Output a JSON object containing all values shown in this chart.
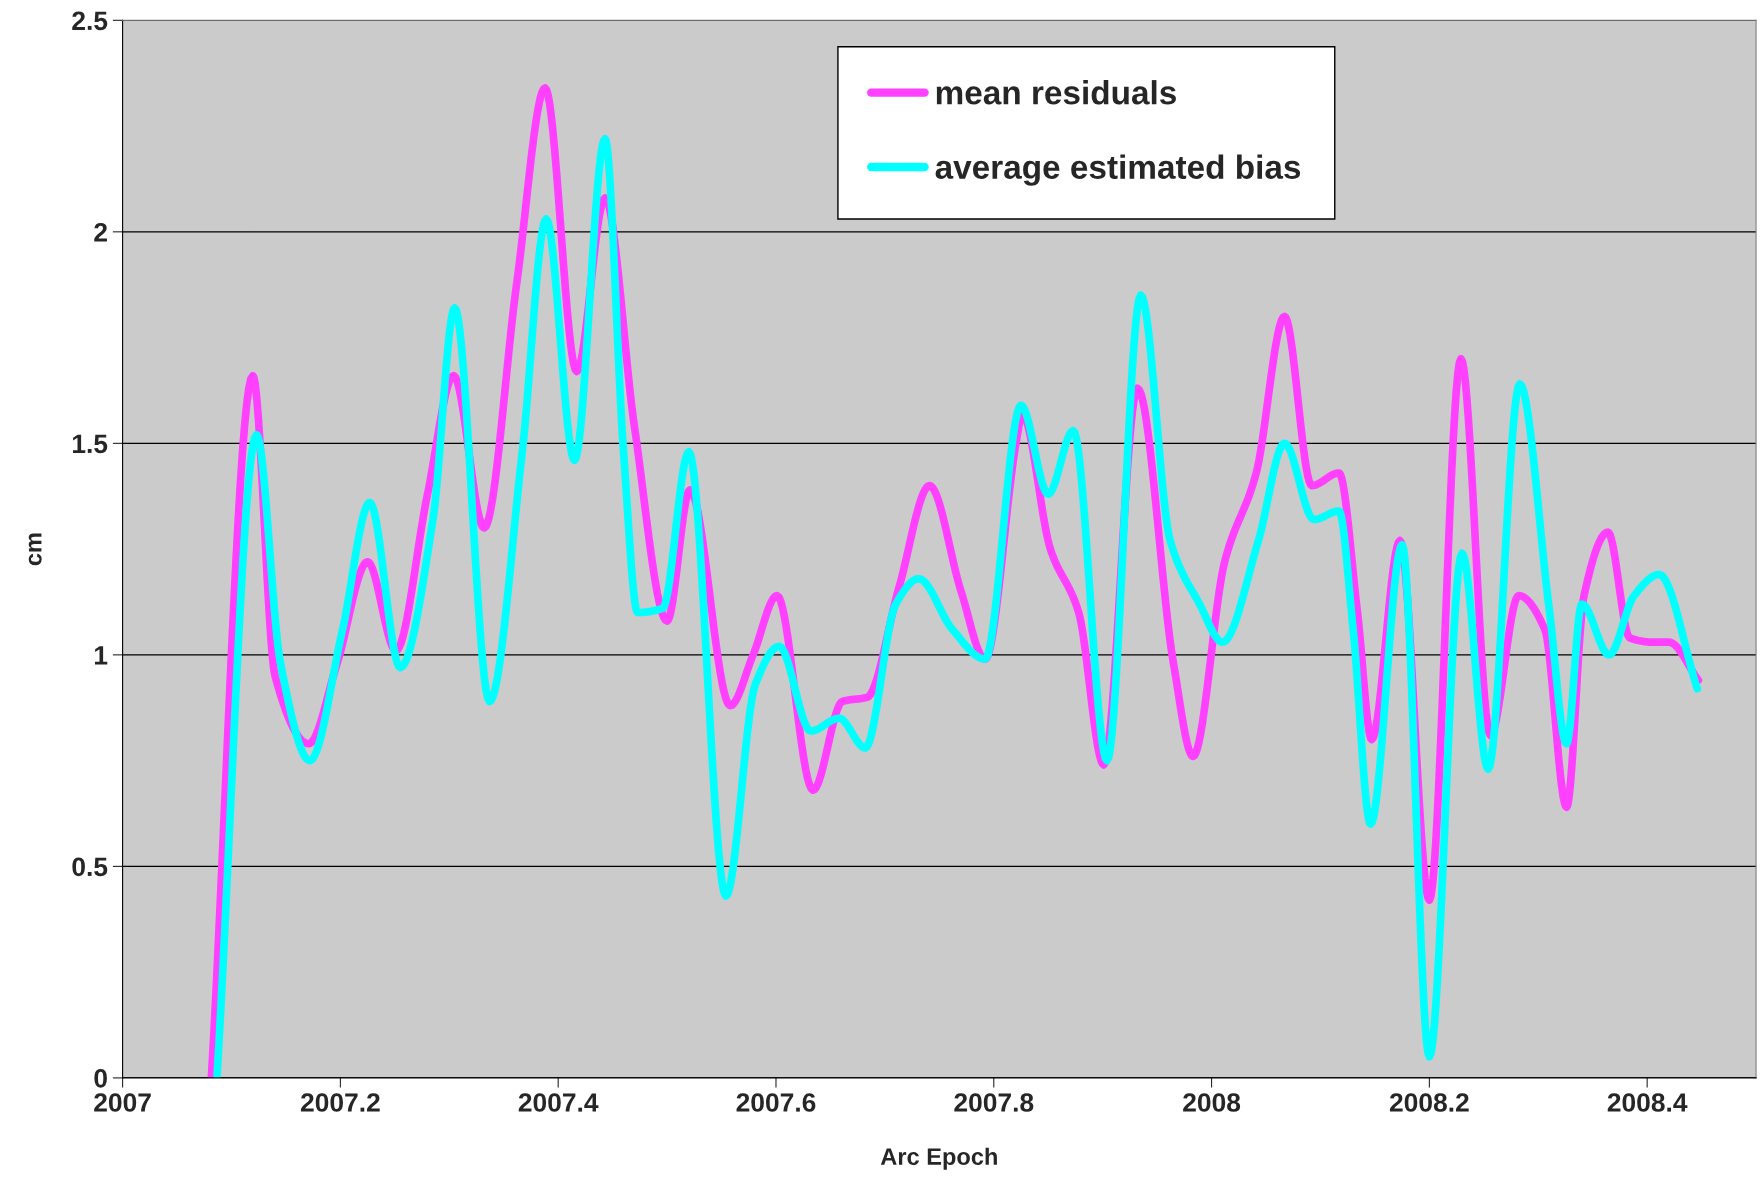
{
  "chart_data": {
    "type": "line",
    "xlabel": "Arc Epoch",
    "ylabel": "cm",
    "xlim": [
      2007,
      2008.5
    ],
    "ylim": [
      0,
      2.5
    ],
    "xticks": [
      2007,
      2007.2,
      2007.4,
      2007.6,
      2007.8,
      2008,
      2008.2,
      2008.4
    ],
    "yticks": [
      0,
      0.5,
      1,
      1.5,
      2,
      2.5
    ],
    "grid": "y",
    "legend": "top",
    "marker": "none",
    "line_style": "solid",
    "series": [
      {
        "name": "mean residuals",
        "color": "#ff40ff",
        "x": [
          2007.0815,
          2007.1196,
          2007.14,
          2007.171,
          2007.197,
          2007.225,
          2007.251,
          2007.28,
          2007.304,
          2007.332,
          2007.362,
          2007.388,
          2007.417,
          2007.443,
          2007.47,
          2007.5,
          2007.521,
          2007.558,
          2007.579,
          2007.601,
          2007.634,
          2007.661,
          2007.684,
          2007.713,
          2007.741,
          2007.77,
          2007.792,
          2007.821,
          2007.826,
          2007.852,
          2007.878,
          2007.901,
          2007.932,
          2007.965,
          2007.983,
          2008.012,
          2008.041,
          2008.067,
          2008.092,
          2008.117,
          2008.134,
          2008.147,
          2008.173,
          2008.2,
          2008.229,
          2008.256,
          2008.282,
          2008.306,
          2008.326,
          2008.342,
          2008.364,
          2008.384,
          2008.405,
          2008.42,
          2008.447
        ],
        "values": [
          0,
          1.66,
          0.95,
          0.79,
          0.98,
          1.22,
          1.01,
          1.38,
          1.66,
          1.3,
          1.88,
          2.34,
          1.67,
          2.08,
          1.54,
          1.08,
          1.39,
          0.88,
          1.0,
          1.14,
          0.68,
          0.89,
          0.9,
          1.16,
          1.4,
          1.15,
          0.99,
          1.51,
          1.57,
          1.25,
          1.1,
          0.74,
          1.63,
          0.98,
          0.76,
          1.22,
          1.43,
          1.8,
          1.4,
          1.43,
          1.1,
          0.8,
          1.27,
          0.42,
          1.7,
          0.81,
          1.14,
          1.06,
          0.64,
          1.14,
          1.29,
          1.04,
          1.03,
          1.03,
          0.94
        ]
      },
      {
        "name": "average estimated bias",
        "color": "#00ffff",
        "x": [
          2007.0866,
          2007.123,
          2007.145,
          2007.172,
          2007.202,
          2007.227,
          2007.255,
          2007.285,
          2007.305,
          2007.337,
          2007.367,
          2007.389,
          2007.415,
          2007.443,
          2007.46,
          2007.473,
          2007.496,
          2007.52,
          2007.554,
          2007.581,
          2007.603,
          2007.632,
          2007.658,
          2007.682,
          2007.71,
          2007.731,
          2007.762,
          2007.792,
          2007.825,
          2007.85,
          2007.873,
          2007.904,
          2007.935,
          2007.962,
          2007.989,
          2008.01,
          2008.043,
          2008.067,
          2008.094,
          2008.117,
          2008.13,
          2008.146,
          2008.175,
          2008.2,
          2008.23,
          2008.254,
          2008.283,
          2008.31,
          2008.326,
          2008.34,
          2008.365,
          2008.388,
          2008.411,
          2008.446
        ],
        "values": [
          0,
          1.52,
          0.98,
          0.75,
          1.06,
          1.36,
          0.97,
          1.32,
          1.82,
          0.89,
          1.48,
          2.03,
          1.46,
          2.22,
          1.48,
          1.1,
          1.11,
          1.48,
          0.43,
          0.93,
          1.02,
          0.82,
          0.85,
          0.78,
          1.12,
          1.18,
          1.06,
          0.99,
          1.59,
          1.38,
          1.53,
          0.75,
          1.85,
          1.27,
          1.12,
          1.03,
          1.27,
          1.5,
          1.32,
          1.34,
          1.06,
          0.6,
          1.26,
          0.05,
          1.24,
          0.73,
          1.64,
          1.11,
          0.79,
          1.12,
          1.0,
          1.14,
          1.19,
          0.92
        ]
      }
    ]
  }
}
